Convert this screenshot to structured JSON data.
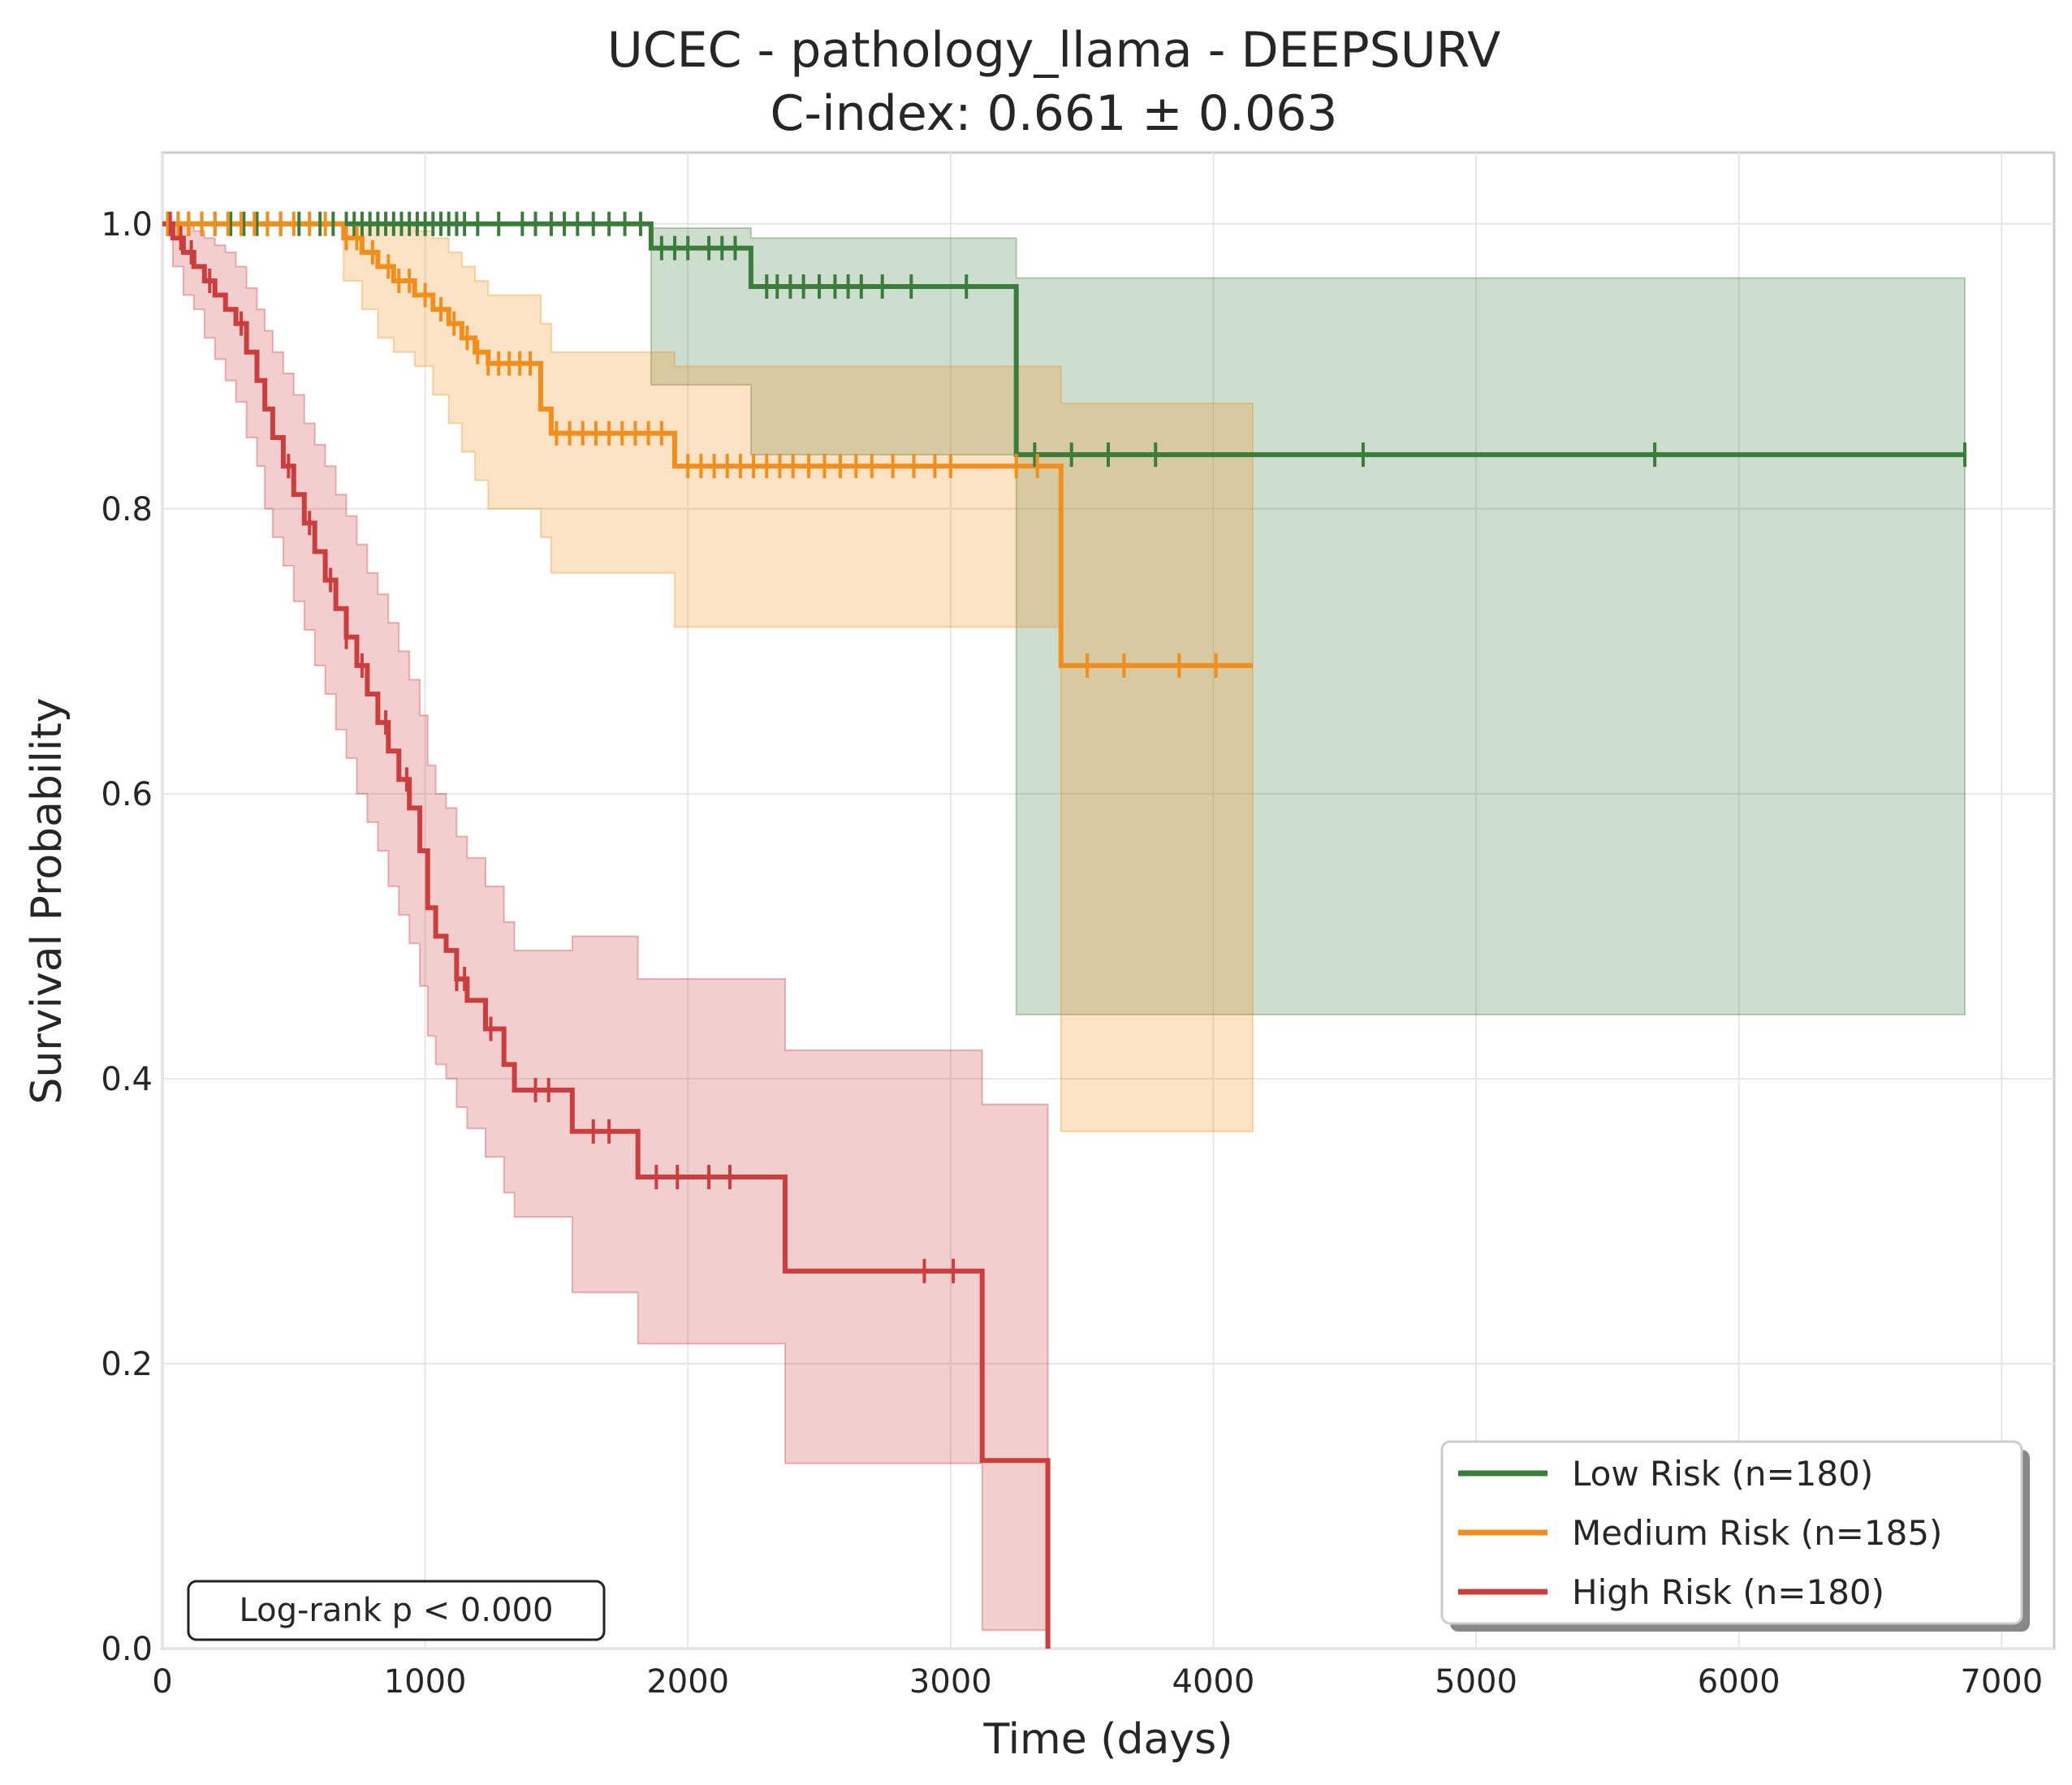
{
  "chart_data": {
    "type": "line",
    "title": "UCEC - pathology_llama - DEEPSURV",
    "subtitle": "C-index: 0.661 ± 0.063",
    "xlabel": "Time (days)",
    "ylabel": "Survival Probability",
    "xlim": [
      0,
      7200
    ],
    "ylim": [
      0,
      1.05
    ],
    "xticks": [
      0,
      1000,
      2000,
      3000,
      4000,
      5000,
      6000,
      7000
    ],
    "yticks": [
      0.0,
      0.2,
      0.4,
      0.6,
      0.8,
      1.0
    ],
    "xtick_labels": [
      "0",
      "1000",
      "2000",
      "3000",
      "4000",
      "5000",
      "6000",
      "7000"
    ],
    "ytick_labels": [
      "0.0",
      "0.2",
      "0.4",
      "0.6",
      "0.8",
      "1.0"
    ],
    "grid": true,
    "legend_position": "bottom-right",
    "annotation": "Log-rank p < 0.000",
    "series": [
      {
        "name": "Low Risk (n=180)",
        "color": "#3a7d3a",
        "steps": [
          [
            0,
            1.0
          ],
          [
            1860,
            0.983
          ],
          [
            2240,
            0.956
          ],
          [
            3250,
            0.838
          ],
          [
            6860,
            0.838
          ]
        ],
        "ci": [
          [
            0,
            1.0,
            1.0
          ],
          [
            1860,
            0.887,
            0.997
          ],
          [
            2240,
            0.838,
            0.99
          ],
          [
            3250,
            0.445,
            0.962
          ],
          [
            6860,
            0.445,
            0.962
          ]
        ],
        "censored": [
          20,
          60,
          100,
          150,
          200,
          260,
          310,
          360,
          400,
          450,
          520,
          600,
          650,
          700,
          730,
          760,
          790,
          820,
          850,
          880,
          910,
          940,
          970,
          1000,
          1030,
          1060,
          1090,
          1120,
          1150,
          1200,
          1280,
          1370,
          1420,
          1480,
          1530,
          1580,
          1640,
          1700,
          1760,
          1820,
          1900,
          1950,
          2000,
          2080,
          2130,
          2180,
          2300,
          2340,
          2390,
          2440,
          2500,
          2560,
          2610,
          2660,
          2740,
          2850,
          3060,
          3320,
          3460,
          3600,
          3780,
          4570,
          5680,
          6860
        ]
      },
      {
        "name": "Medium Risk (n=185)",
        "color": "#f28e1c",
        "steps": [
          [
            0,
            1.0
          ],
          [
            690,
            0.99
          ],
          [
            760,
            0.98
          ],
          [
            820,
            0.97
          ],
          [
            880,
            0.96
          ],
          [
            960,
            0.95
          ],
          [
            1030,
            0.94
          ],
          [
            1090,
            0.93
          ],
          [
            1140,
            0.92
          ],
          [
            1190,
            0.91
          ],
          [
            1240,
            0.902
          ],
          [
            1440,
            0.87
          ],
          [
            1480,
            0.853
          ],
          [
            1950,
            0.83
          ],
          [
            3420,
            0.69
          ],
          [
            4150,
            0.69
          ]
        ],
        "ci": [
          [
            0,
            1.0,
            1.0
          ],
          [
            690,
            0.96,
            1.0
          ],
          [
            760,
            0.94,
            1.0
          ],
          [
            820,
            0.92,
            1.0
          ],
          [
            880,
            0.91,
            1.0
          ],
          [
            960,
            0.9,
            0.995
          ],
          [
            1030,
            0.88,
            0.99
          ],
          [
            1090,
            0.86,
            0.98
          ],
          [
            1140,
            0.84,
            0.97
          ],
          [
            1190,
            0.82,
            0.96
          ],
          [
            1240,
            0.8,
            0.95
          ],
          [
            1440,
            0.78,
            0.93
          ],
          [
            1480,
            0.755,
            0.91
          ],
          [
            1950,
            0.717,
            0.9
          ],
          [
            3420,
            0.363,
            0.874
          ],
          [
            4150,
            0.363,
            0.874
          ]
        ],
        "censored": [
          20,
          60,
          100,
          150,
          200,
          250,
          300,
          350,
          400,
          450,
          500,
          560,
          620,
          700,
          740,
          800,
          860,
          900,
          940,
          1000,
          1060,
          1110,
          1160,
          1200,
          1240,
          1280,
          1320,
          1360,
          1400,
          1500,
          1550,
          1600,
          1650,
          1700,
          1750,
          1800,
          1850,
          1900,
          2000,
          2050,
          2100,
          2150,
          2200,
          2250,
          2300,
          2350,
          2400,
          2460,
          2520,
          2580,
          2640,
          2700,
          2780,
          2860,
          2940,
          3000,
          3250,
          3330,
          3520,
          3660,
          3870,
          4010
        ]
      },
      {
        "name": "High Risk (n=180)",
        "color": "#cc3d3d",
        "steps": [
          [
            0,
            1.0
          ],
          [
            40,
            0.99
          ],
          [
            80,
            0.98
          ],
          [
            120,
            0.97
          ],
          [
            160,
            0.96
          ],
          [
            200,
            0.95
          ],
          [
            240,
            0.94
          ],
          [
            280,
            0.93
          ],
          [
            320,
            0.91
          ],
          [
            360,
            0.89
          ],
          [
            390,
            0.87
          ],
          [
            420,
            0.85
          ],
          [
            460,
            0.83
          ],
          [
            500,
            0.81
          ],
          [
            540,
            0.79
          ],
          [
            580,
            0.77
          ],
          [
            620,
            0.75
          ],
          [
            660,
            0.73
          ],
          [
            700,
            0.71
          ],
          [
            740,
            0.69
          ],
          [
            780,
            0.67
          ],
          [
            820,
            0.65
          ],
          [
            860,
            0.63
          ],
          [
            900,
            0.61
          ],
          [
            940,
            0.59
          ],
          [
            980,
            0.56
          ],
          [
            1010,
            0.52
          ],
          [
            1040,
            0.5
          ],
          [
            1080,
            0.49
          ],
          [
            1120,
            0.47
          ],
          [
            1160,
            0.455
          ],
          [
            1230,
            0.435
          ],
          [
            1300,
            0.41
          ],
          [
            1340,
            0.392
          ],
          [
            1560,
            0.363
          ],
          [
            1810,
            0.331
          ],
          [
            2370,
            0.265
          ],
          [
            3120,
            0.132
          ],
          [
            3370,
            0.0
          ]
        ],
        "ci": [
          [
            0,
            1.0,
            1.0
          ],
          [
            40,
            0.97,
            1.0
          ],
          [
            80,
            0.95,
            0.999
          ],
          [
            120,
            0.94,
            0.995
          ],
          [
            160,
            0.92,
            0.99
          ],
          [
            200,
            0.905,
            0.985
          ],
          [
            240,
            0.89,
            0.98
          ],
          [
            280,
            0.875,
            0.97
          ],
          [
            320,
            0.85,
            0.955
          ],
          [
            360,
            0.83,
            0.94
          ],
          [
            390,
            0.8,
            0.925
          ],
          [
            420,
            0.78,
            0.91
          ],
          [
            460,
            0.76,
            0.895
          ],
          [
            500,
            0.735,
            0.88
          ],
          [
            540,
            0.715,
            0.86
          ],
          [
            580,
            0.69,
            0.845
          ],
          [
            620,
            0.67,
            0.83
          ],
          [
            660,
            0.645,
            0.81
          ],
          [
            700,
            0.625,
            0.795
          ],
          [
            740,
            0.6,
            0.775
          ],
          [
            780,
            0.58,
            0.755
          ],
          [
            820,
            0.56,
            0.74
          ],
          [
            860,
            0.535,
            0.72
          ],
          [
            900,
            0.515,
            0.7
          ],
          [
            940,
            0.495,
            0.68
          ],
          [
            980,
            0.465,
            0.655
          ],
          [
            1010,
            0.43,
            0.62
          ],
          [
            1040,
            0.41,
            0.6
          ],
          [
            1080,
            0.4,
            0.59
          ],
          [
            1120,
            0.38,
            0.57
          ],
          [
            1160,
            0.365,
            0.555
          ],
          [
            1230,
            0.345,
            0.535
          ],
          [
            1300,
            0.32,
            0.51
          ],
          [
            1340,
            0.303,
            0.49
          ],
          [
            1560,
            0.25,
            0.5
          ],
          [
            1810,
            0.214,
            0.47
          ],
          [
            2370,
            0.13,
            0.42
          ],
          [
            3120,
            0.013,
            0.382
          ],
          [
            3370,
            0.0,
            0.0
          ]
        ],
        "censored": [
          30,
          70,
          110,
          180,
          300,
          480,
          560,
          640,
          700,
          760,
          850,
          930,
          1120,
          1150,
          1250,
          1420,
          1470,
          1640,
          1700,
          1880,
          1960,
          2080,
          2160,
          2900,
          3010
        ]
      }
    ]
  }
}
